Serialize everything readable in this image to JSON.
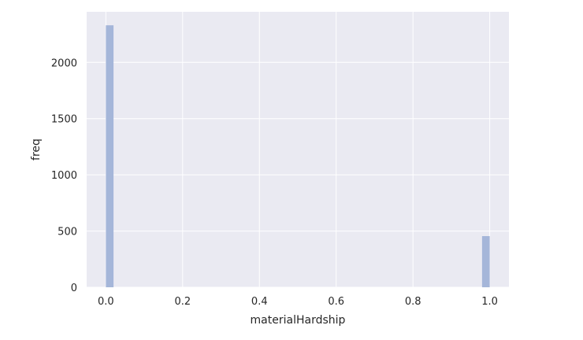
{
  "chart_data": {
    "type": "bar",
    "chart_subtype": "histogram",
    "title": "",
    "xlabel": "materialHardship",
    "ylabel": "freq",
    "xlim": [
      -0.05,
      1.05
    ],
    "ylim": [
      0,
      2450
    ],
    "x_ticks": [
      {
        "value": 0.0,
        "label": "0.0"
      },
      {
        "value": 0.2,
        "label": "0.2"
      },
      {
        "value": 0.4,
        "label": "0.4"
      },
      {
        "value": 0.6,
        "label": "0.6"
      },
      {
        "value": 0.8,
        "label": "0.8"
      },
      {
        "value": 1.0,
        "label": "1.0"
      }
    ],
    "y_ticks": [
      {
        "value": 0,
        "label": "0"
      },
      {
        "value": 500,
        "label": "500"
      },
      {
        "value": 1000,
        "label": "1000"
      },
      {
        "value": 1500,
        "label": "1500"
      },
      {
        "value": 2000,
        "label": "2000"
      }
    ],
    "bin_width": 0.02,
    "bins": [
      {
        "x_start": 0.0,
        "x_end": 0.02,
        "value": 2330
      },
      {
        "x_start": 0.98,
        "x_end": 1.0,
        "value": 455
      }
    ],
    "grid": true,
    "colors": {
      "background": "#eaeaf2",
      "grid": "#ffffff",
      "bar": "#a5b6d9",
      "text": "#262626"
    }
  }
}
